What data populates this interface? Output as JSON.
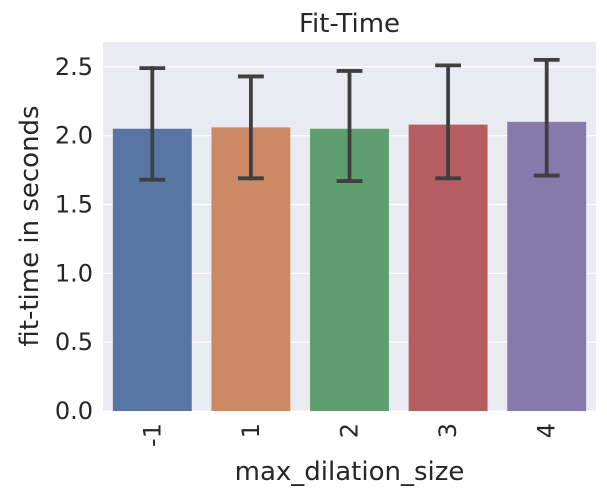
{
  "chart_data": {
    "type": "bar",
    "title": "Fit-Time",
    "xlabel": "max_dilation_size",
    "ylabel": "fit-time in seconds",
    "categories": [
      "-1",
      "1",
      "2",
      "3",
      "4"
    ],
    "values": [
      2.05,
      2.06,
      2.05,
      2.08,
      2.1
    ],
    "error_low": [
      1.68,
      1.69,
      1.67,
      1.69,
      1.71
    ],
    "error_high": [
      2.49,
      2.43,
      2.47,
      2.51,
      2.55
    ],
    "colors": [
      "#5875a4",
      "#cc8963",
      "#5f9e6e",
      "#b55d60",
      "#857aab"
    ],
    "ylim": [
      0,
      2.68
    ],
    "yticks": [
      "0.0",
      "0.5",
      "1.0",
      "1.5",
      "2.0",
      "2.5"
    ],
    "grid": true,
    "background": "#eaeaf2",
    "error_color": "#3f3f3f"
  }
}
